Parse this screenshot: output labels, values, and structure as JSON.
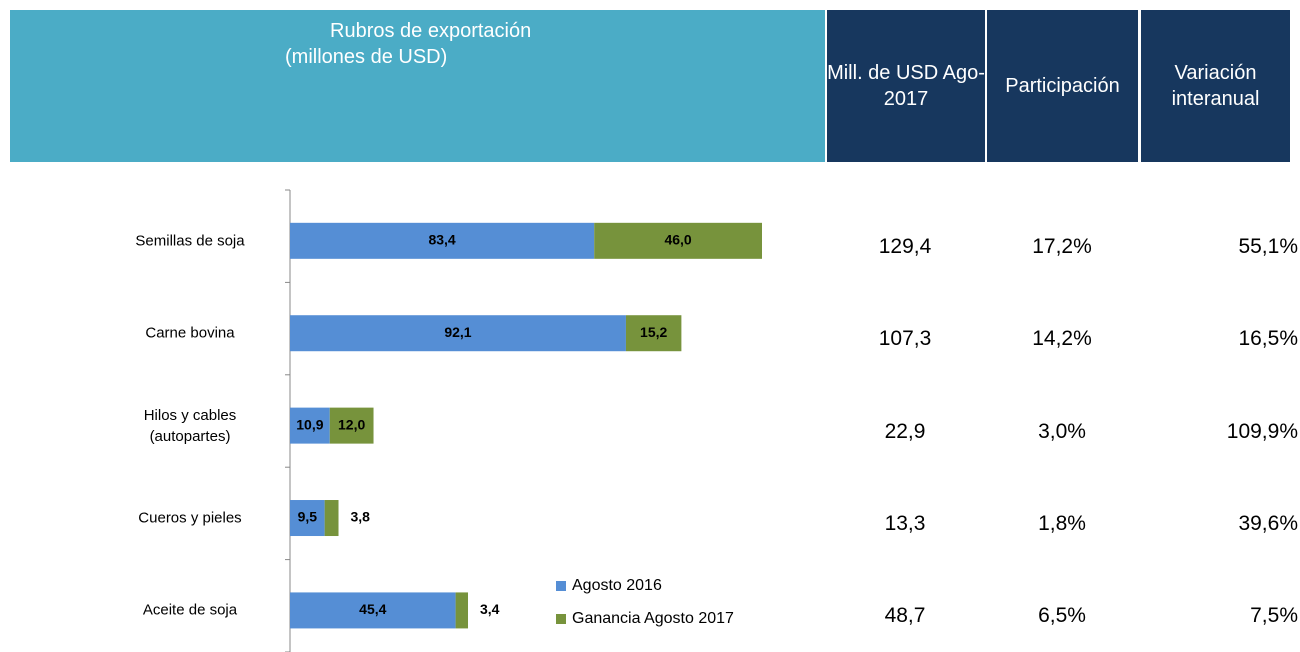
{
  "header": {
    "title_lines": [
      "Rubros de exportación",
      "(millones de USD)"
    ],
    "columns": [
      "Mill. de USD Ago-2017",
      "Participación",
      "Variación interanual"
    ]
  },
  "chart_data": {
    "type": "stacked_bar_horizontal",
    "categories": [
      "Semillas de soja",
      "Carne bovina",
      "Hilos y cables (autopartes)",
      "Cueros y pieles",
      "Aceite de soja"
    ],
    "series": [
      {
        "name": "Agosto 2016",
        "color": "#558ed5",
        "values": [
          83.4,
          92.1,
          10.9,
          9.5,
          45.4
        ],
        "value_labels": [
          "83,4",
          "92,1",
          "10,9",
          "9,5",
          "45,4"
        ]
      },
      {
        "name": "Ganancia Agosto 2017",
        "color": "#77933c",
        "values": [
          46.0,
          15.2,
          12.0,
          3.8,
          3.4
        ],
        "value_labels": [
          "46,0",
          "15,2",
          "12,0",
          "3,8",
          "3,4"
        ]
      }
    ]
  },
  "table": {
    "rows": [
      [
        "129,4",
        "17,2%",
        "55,1%"
      ],
      [
        "107,3",
        "14,2%",
        "16,5%"
      ],
      [
        "22,9",
        "3,0%",
        "109,9%"
      ],
      [
        "13,3",
        "1,8%",
        "39,6%"
      ],
      [
        "48,7",
        "6,5%",
        "7,5%"
      ]
    ]
  }
}
